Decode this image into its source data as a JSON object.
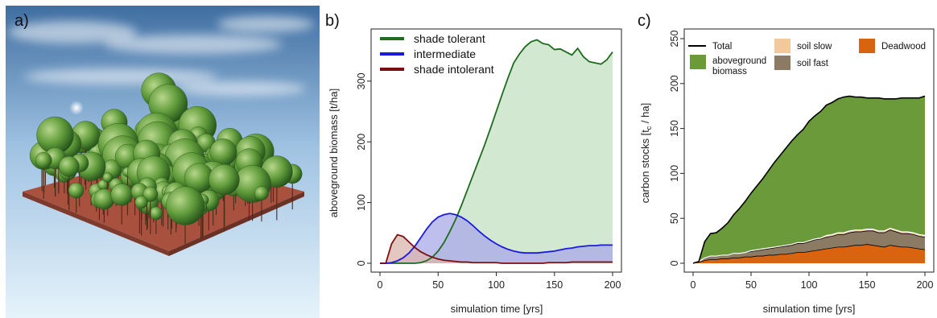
{
  "panel_a": {
    "letter": "a)"
  },
  "chart_data": [
    {
      "panel": "b)",
      "type": "area",
      "title": "",
      "xlabel": "simulation time [yrs]",
      "ylabel": "aboveground biomass [t/ha]",
      "xlim": [
        0,
        200
      ],
      "ylim": [
        0,
        370
      ],
      "xticks": [
        0,
        50,
        100,
        150,
        200
      ],
      "yticks": [
        0,
        100,
        200,
        300
      ],
      "legend_position": "top-left",
      "grid": false,
      "x": [
        0,
        5,
        10,
        15,
        20,
        25,
        30,
        35,
        40,
        45,
        50,
        55,
        60,
        65,
        70,
        75,
        80,
        85,
        90,
        95,
        100,
        105,
        110,
        115,
        120,
        125,
        130,
        135,
        140,
        145,
        150,
        155,
        160,
        165,
        170,
        175,
        180,
        185,
        190,
        195,
        200
      ],
      "series": [
        {
          "name": "shade tolerant",
          "color": "#1e6b1e",
          "fill": "#c3e0c1",
          "values": [
            0,
            0,
            0,
            0,
            0,
            0,
            0,
            1,
            4,
            10,
            20,
            34,
            52,
            72,
            95,
            120,
            145,
            170,
            195,
            222,
            250,
            278,
            305,
            330,
            345,
            357,
            365,
            368,
            362,
            360,
            352,
            353,
            348,
            343,
            354,
            340,
            332,
            330,
            328,
            335,
            348
          ]
        },
        {
          "name": "intermediate",
          "color": "#1a1ae0",
          "fill": "#a9a9e8",
          "values": [
            0,
            0,
            1,
            4,
            9,
            17,
            28,
            42,
            56,
            68,
            76,
            80,
            82,
            80,
            76,
            70,
            62,
            53,
            45,
            38,
            32,
            27,
            23,
            20,
            18,
            17,
            17,
            17,
            18,
            19,
            20,
            22,
            24,
            25,
            27,
            28,
            29,
            29,
            30,
            30,
            30
          ]
        },
        {
          "name": "shade intolerant",
          "color": "#7a0f0f",
          "fill": "#d9b5ae",
          "values": [
            0,
            0,
            32,
            47,
            44,
            35,
            26,
            19,
            14,
            10,
            7,
            5,
            4,
            3,
            2,
            2,
            1,
            1,
            1,
            1,
            1,
            0,
            0,
            0,
            0,
            0,
            0,
            0,
            0,
            1,
            1,
            1,
            1,
            2,
            2,
            2,
            2,
            2,
            2,
            2,
            2
          ]
        }
      ]
    },
    {
      "panel": "c)",
      "type": "area",
      "title": "",
      "xlabel": "simulation time [yrs]",
      "ylabel": "carbon stocks [t",
      "ylabel_sub": "c",
      "ylabel_end": " / ha]",
      "xlim": [
        0,
        200
      ],
      "ylim": [
        0,
        250
      ],
      "xticks": [
        0,
        50,
        100,
        150,
        200
      ],
      "yticks": [
        0,
        50,
        100,
        150,
        200,
        250
      ],
      "legend_position": "top",
      "grid": false,
      "stacked": true,
      "x": [
        0,
        5,
        10,
        15,
        20,
        25,
        30,
        35,
        40,
        45,
        50,
        55,
        60,
        65,
        70,
        75,
        80,
        85,
        90,
        95,
        100,
        105,
        110,
        115,
        120,
        125,
        130,
        135,
        140,
        145,
        150,
        155,
        160,
        165,
        170,
        175,
        180,
        185,
        190,
        195,
        200
      ],
      "series": [
        {
          "name": "Deadwood",
          "color": "#d9630f",
          "values": [
            0,
            1,
            3,
            4,
            4,
            5,
            5,
            6,
            6,
            7,
            7,
            8,
            8,
            9,
            9,
            10,
            10,
            11,
            12,
            12,
            13,
            14,
            15,
            16,
            17,
            18,
            18,
            19,
            20,
            20,
            21,
            20,
            19,
            18,
            20,
            19,
            18,
            18,
            17,
            16,
            15
          ]
        },
        {
          "name": "soil fast",
          "color": "#8b7b65",
          "values": [
            0,
            1,
            3,
            4,
            4,
            4,
            4,
            5,
            5,
            5,
            6,
            6,
            7,
            7,
            8,
            8,
            9,
            9,
            10,
            10,
            11,
            12,
            12,
            13,
            13,
            14,
            14,
            15,
            15,
            15,
            15,
            16,
            15,
            16,
            17,
            16,
            15,
            15,
            15,
            14,
            14
          ]
        },
        {
          "name": "soil slow",
          "color": "#f1c99c",
          "values": [
            0,
            0,
            0,
            0,
            0,
            0,
            0,
            0,
            0,
            0,
            1,
            1,
            1,
            1,
            1,
            1,
            1,
            1,
            1,
            1,
            1,
            1,
            1,
            2,
            2,
            2,
            2,
            2,
            2,
            2,
            2,
            2,
            2,
            2,
            2,
            2,
            2,
            2,
            2,
            2,
            2
          ]
        },
        {
          "name": "aboveground biomass",
          "color": "#6a9a3a",
          "values": [
            0,
            0,
            18,
            25,
            26,
            30,
            36,
            43,
            50,
            57,
            64,
            71,
            78,
            86,
            94,
            101,
            108,
            115,
            120,
            126,
            133,
            137,
            141,
            145,
            147,
            149,
            151,
            150,
            148,
            148,
            146,
            146,
            148,
            147,
            144,
            146,
            149,
            149,
            150,
            152,
            155
          ]
        }
      ],
      "total": {
        "name": "Total",
        "color": "#000000",
        "values": [
          0,
          2,
          24,
          33,
          34,
          39,
          45,
          54,
          61,
          69,
          78,
          86,
          94,
          103,
          112,
          120,
          128,
          136,
          143,
          149,
          158,
          164,
          169,
          176,
          179,
          183,
          185,
          186,
          185,
          185,
          184,
          184,
          184,
          183,
          183,
          183,
          184,
          184,
          184,
          184,
          186
        ]
      },
      "legend_labels": {
        "total": "Total",
        "soil_slow": "soil slow",
        "deadwood": "Deadwood",
        "aboveground_line1": "aboveground",
        "aboveground_line2": "biomass",
        "soil_fast": "soil fast"
      }
    }
  ]
}
